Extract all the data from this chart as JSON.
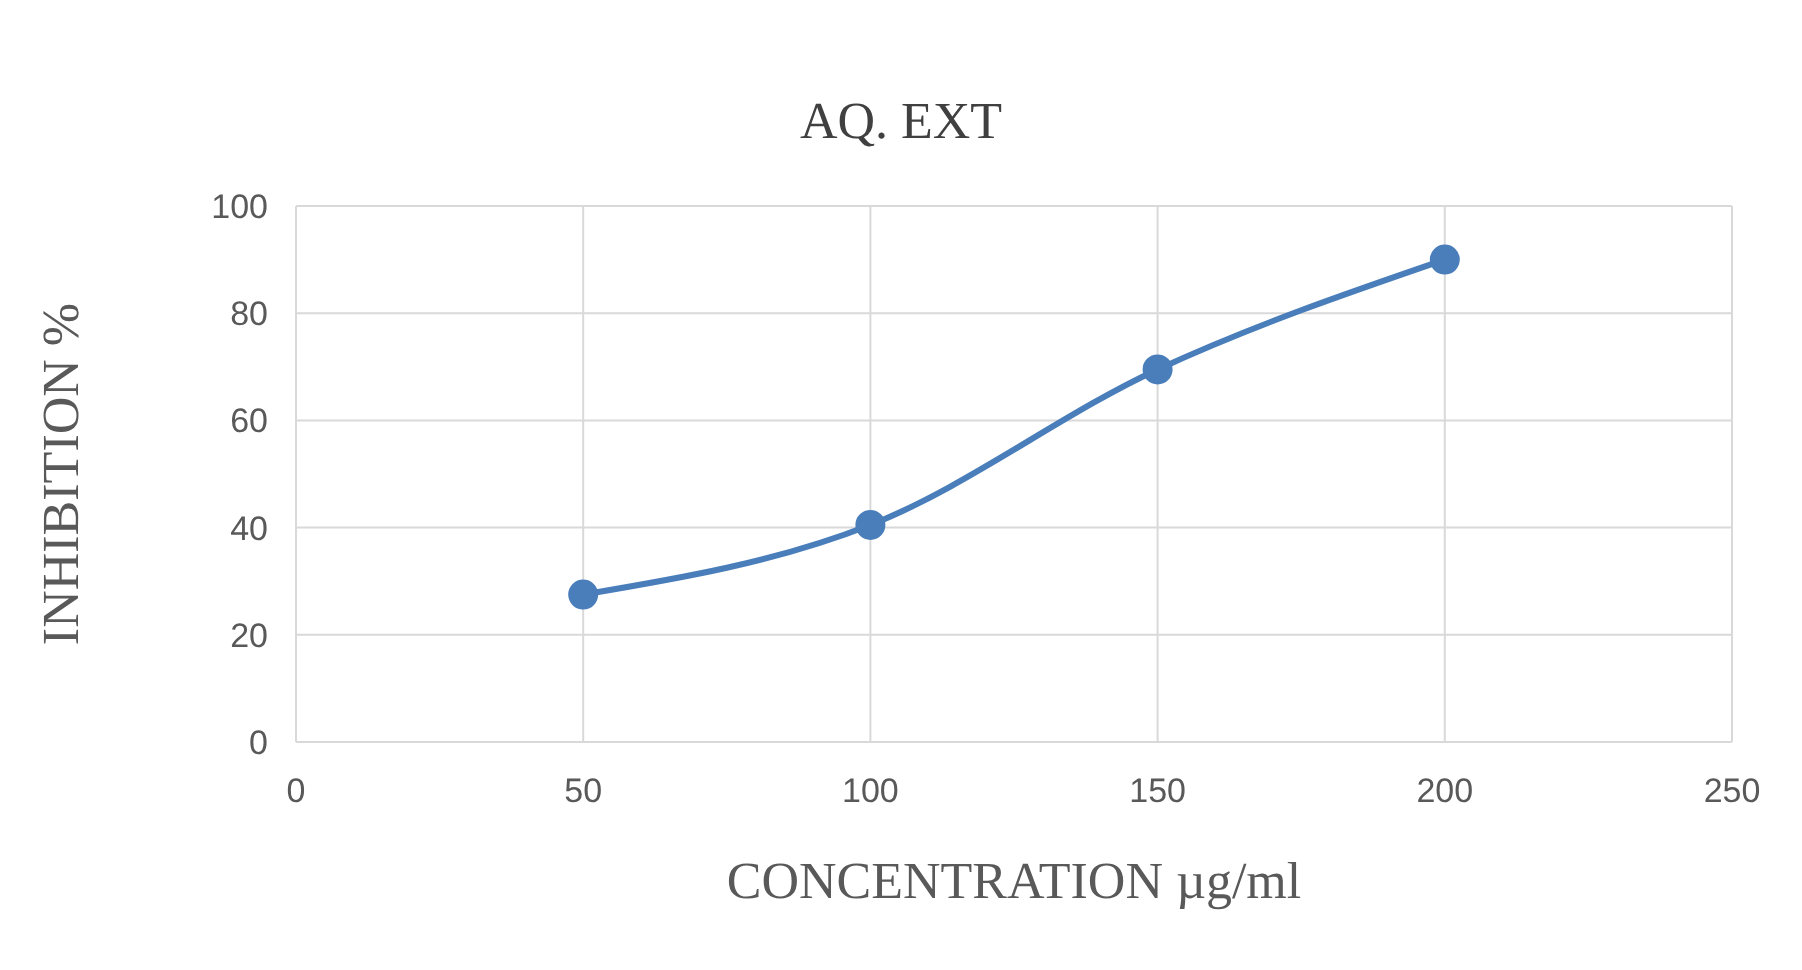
{
  "chart_data": {
    "type": "line",
    "title": "AQ. EXT",
    "xlabel": "CONCENTRATION µg/ml",
    "ylabel": "INHIBITION %",
    "x": [
      50,
      100,
      150,
      200
    ],
    "series": [
      {
        "color": "#4a7ebb",
        "values": [
          27.5,
          40.5,
          69.5,
          90
        ]
      }
    ],
    "xlim": [
      0,
      250
    ],
    "xticks": [
      0,
      50,
      100,
      150,
      200,
      250
    ],
    "ylim": [
      0,
      100
    ],
    "yticks": [
      0,
      20,
      40,
      60,
      80,
      100
    ],
    "grid": true,
    "marker": "circle",
    "line_style": "solid",
    "legend": false
  }
}
